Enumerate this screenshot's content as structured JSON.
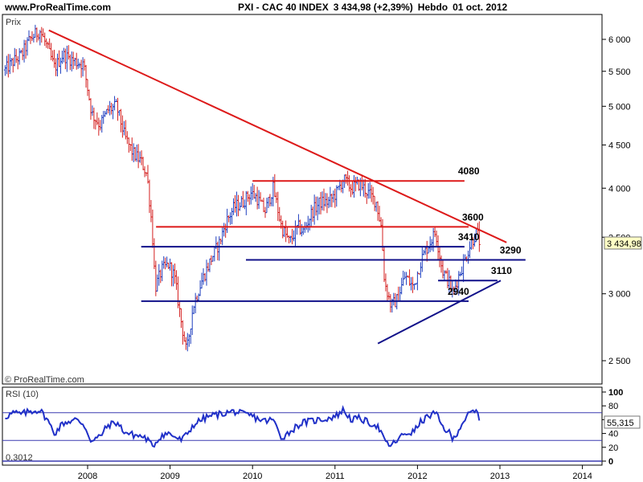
{
  "header": {
    "site": "www.ProRealTime.com",
    "instrument": "PXI - CAC 40 INDEX",
    "last_value": "3 434,98 (+2,39%)",
    "period": "Hebdo",
    "date": "01 oct. 2012"
  },
  "price_panel": {
    "label": "Prix",
    "watermark": "© ProRealTime.com",
    "last_price_tag": "3 434,98"
  },
  "rsi_panel": {
    "label": "RSI (10)",
    "last_value_tag": "55,315",
    "bottom_value": "0,3012"
  },
  "colors": {
    "up_bar": "#1f3fbf",
    "down_bar": "#d42020",
    "resistance": "#dd1a1a",
    "support": "#11118a",
    "rsi_line": "#2030c8",
    "rsi_guides": "#3a3ab0",
    "axis": "#000000"
  },
  "chart_data": [
    {
      "type": "line",
      "subtype": "weekly OHLC bars (CAC 40)",
      "y_scale": "log",
      "ylim": [
        2400,
        6350
      ],
      "y_ticks": [
        "6 000",
        "5 500",
        "5 000",
        "4 500",
        "4 000",
        "3 500",
        "3 000",
        "2 500"
      ],
      "y_tick_values": [
        6000,
        5500,
        5000,
        4500,
        4000,
        3500,
        3000,
        2500
      ],
      "x_ticks": [
        "2008",
        "2009",
        "2010",
        "2011",
        "2012",
        "2013",
        "2014"
      ],
      "xlim": [
        2007.0,
        2014.2
      ],
      "series": [
        {
          "values": [
            [
              2007.0,
              5520
            ],
            [
              2007.1,
              5650
            ],
            [
              2007.2,
              5750
            ],
            [
              2007.3,
              6000
            ],
            [
              2007.42,
              6150
            ],
            [
              2007.5,
              5900
            ],
            [
              2007.6,
              5550
            ],
            [
              2007.7,
              5750
            ],
            [
              2007.85,
              5650
            ],
            [
              2007.95,
              5600
            ],
            [
              2008.05,
              4900
            ],
            [
              2008.15,
              4750
            ],
            [
              2008.25,
              4950
            ],
            [
              2008.35,
              5000
            ],
            [
              2008.45,
              4600
            ],
            [
              2008.55,
              4400
            ],
            [
              2008.65,
              4300
            ],
            [
              2008.72,
              4150
            ],
            [
              2008.78,
              3600
            ],
            [
              2008.82,
              3050
            ],
            [
              2008.9,
              3200
            ],
            [
              2008.98,
              3250
            ],
            [
              2009.05,
              3150
            ],
            [
              2009.13,
              2800
            ],
            [
              2009.2,
              2550
            ],
            [
              2009.28,
              2900
            ],
            [
              2009.38,
              3100
            ],
            [
              2009.5,
              3300
            ],
            [
              2009.6,
              3450
            ],
            [
              2009.68,
              3650
            ],
            [
              2009.78,
              3800
            ],
            [
              2009.88,
              3850
            ],
            [
              2009.98,
              3950
            ],
            [
              2010.05,
              3900
            ],
            [
              2010.15,
              3750
            ],
            [
              2010.25,
              4000
            ],
            [
              2010.35,
              3600
            ],
            [
              2010.45,
              3450
            ],
            [
              2010.55,
              3600
            ],
            [
              2010.62,
              3550
            ],
            [
              2010.72,
              3750
            ],
            [
              2010.82,
              3850
            ],
            [
              2010.92,
              3850
            ],
            [
              2011.02,
              3950
            ],
            [
              2011.1,
              4100
            ],
            [
              2011.2,
              4000
            ],
            [
              2011.3,
              4050
            ],
            [
              2011.4,
              3950
            ],
            [
              2011.5,
              3850
            ],
            [
              2011.56,
              3600
            ],
            [
              2011.6,
              3100
            ],
            [
              2011.68,
              2900
            ],
            [
              2011.75,
              2950
            ],
            [
              2011.85,
              3150
            ],
            [
              2011.95,
              3050
            ],
            [
              2012.05,
              3300
            ],
            [
              2012.15,
              3450
            ],
            [
              2012.22,
              3550
            ],
            [
              2012.3,
              3200
            ],
            [
              2012.38,
              3100
            ],
            [
              2012.43,
              3000
            ],
            [
              2012.5,
              3150
            ],
            [
              2012.58,
              3300
            ],
            [
              2012.65,
              3450
            ],
            [
              2012.72,
              3550
            ],
            [
              2012.76,
              3430
            ]
          ]
        }
      ],
      "annotations": [
        {
          "label": "4080",
          "value": 4080,
          "kind": "resistance",
          "x_from": 2010.0,
          "x_to": 2012.57
        },
        {
          "label": "3600",
          "value": 3600,
          "kind": "resistance",
          "x_from": 2008.83,
          "x_to": 2012.62
        },
        {
          "label": "3410",
          "value": 3410,
          "kind": "support",
          "x_from": 2008.65,
          "x_to": 2012.57
        },
        {
          "label": "3290",
          "value": 3290,
          "kind": "support",
          "x_from": 2009.92,
          "x_to": 2013.31
        },
        {
          "label": "3110",
          "value": 3110,
          "kind": "support",
          "x_from": 2012.25,
          "x_to": 2012.97
        },
        {
          "label": "2940",
          "value": 2940,
          "kind": "support",
          "x_from": 2008.65,
          "x_to": 2012.62
        },
        {
          "label": "",
          "kind": "downtrend",
          "from": [
            2007.53,
            6150
          ],
          "to": [
            2013.08,
            3450
          ]
        },
        {
          "label": "",
          "kind": "uptrend",
          "from": [
            2011.52,
            2620
          ],
          "to": [
            2013.01,
            3110
          ]
        }
      ]
    },
    {
      "type": "line",
      "subtype": "RSI oscillator",
      "ylim": [
        0,
        100
      ],
      "y_ticks": [
        "100",
        "80",
        "60",
        "40",
        "20",
        "0"
      ],
      "y_tick_values": [
        100,
        80,
        60,
        40,
        20,
        0
      ],
      "guide_levels": [
        70,
        30
      ],
      "series": [
        {
          "values": [
            [
              2007.0,
              64
            ],
            [
              2007.1,
              70
            ],
            [
              2007.2,
              68
            ],
            [
              2007.3,
              72
            ],
            [
              2007.42,
              74
            ],
            [
              2007.5,
              62
            ],
            [
              2007.6,
              40
            ],
            [
              2007.7,
              55
            ],
            [
              2007.85,
              60
            ],
            [
              2007.95,
              54
            ],
            [
              2008.05,
              28
            ],
            [
              2008.15,
              36
            ],
            [
              2008.25,
              52
            ],
            [
              2008.35,
              56
            ],
            [
              2008.45,
              42
            ],
            [
              2008.55,
              38
            ],
            [
              2008.65,
              36
            ],
            [
              2008.72,
              32
            ],
            [
              2008.78,
              22
            ],
            [
              2008.82,
              26
            ],
            [
              2008.9,
              38
            ],
            [
              2008.98,
              40
            ],
            [
              2009.05,
              36
            ],
            [
              2009.13,
              30
            ],
            [
              2009.2,
              38
            ],
            [
              2009.28,
              52
            ],
            [
              2009.38,
              60
            ],
            [
              2009.5,
              66
            ],
            [
              2009.6,
              68
            ],
            [
              2009.68,
              70
            ],
            [
              2009.78,
              72
            ],
            [
              2009.88,
              68
            ],
            [
              2009.98,
              66
            ],
            [
              2010.05,
              62
            ],
            [
              2010.15,
              58
            ],
            [
              2010.25,
              60
            ],
            [
              2010.35,
              34
            ],
            [
              2010.45,
              42
            ],
            [
              2010.55,
              52
            ],
            [
              2010.62,
              56
            ],
            [
              2010.72,
              58
            ],
            [
              2010.82,
              60
            ],
            [
              2010.92,
              62
            ],
            [
              2011.02,
              66
            ],
            [
              2011.1,
              74
            ],
            [
              2011.2,
              60
            ],
            [
              2011.3,
              62
            ],
            [
              2011.4,
              56
            ],
            [
              2011.5,
              52
            ],
            [
              2011.56,
              42
            ],
            [
              2011.6,
              28
            ],
            [
              2011.68,
              22
            ],
            [
              2011.75,
              30
            ],
            [
              2011.85,
              40
            ],
            [
              2011.95,
              42
            ],
            [
              2012.05,
              58
            ],
            [
              2012.15,
              66
            ],
            [
              2012.22,
              70
            ],
            [
              2012.3,
              50
            ],
            [
              2012.38,
              42
            ],
            [
              2012.43,
              30
            ],
            [
              2012.5,
              46
            ],
            [
              2012.58,
              62
            ],
            [
              2012.65,
              70
            ],
            [
              2012.72,
              72
            ],
            [
              2012.76,
              55
            ]
          ]
        }
      ]
    }
  ]
}
